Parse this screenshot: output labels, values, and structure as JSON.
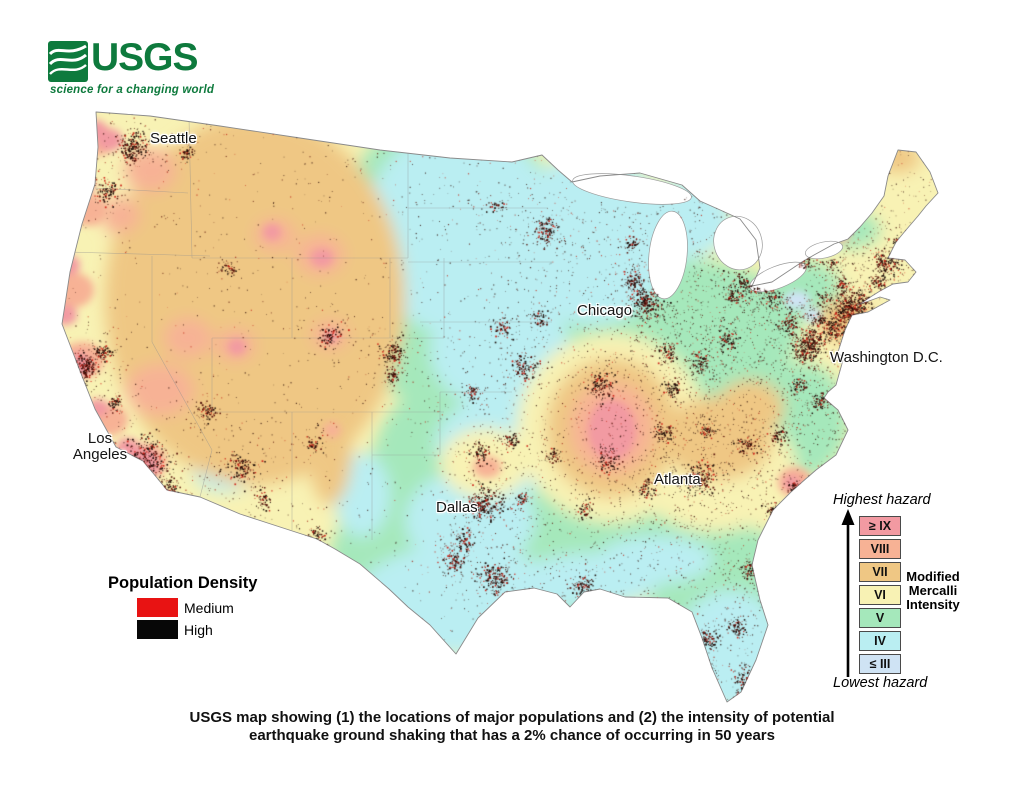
{
  "logo": {
    "org": "USGS",
    "tagline": "science for a changing world",
    "color": "#0e7a3d"
  },
  "map": {
    "city_labels": [
      {
        "name": "Seattle"
      },
      {
        "name": "Chicago"
      },
      {
        "name": "Washington D.C."
      },
      {
        "name": "Los\nAngeles"
      },
      {
        "name": "Atlanta"
      },
      {
        "name": "Dallas"
      }
    ]
  },
  "population_legend": {
    "title": "Population Density",
    "items": [
      {
        "label": "Medium",
        "color": "#e81313"
      },
      {
        "label": "High",
        "color": "#070707"
      }
    ]
  },
  "hazard_legend": {
    "top_label": "Highest hazard",
    "bottom_label": "Lowest hazard",
    "scale_label": "Modified\nMercalli\nIntensity",
    "levels": [
      {
        "label": "≥ IX",
        "color": "#f29aa2"
      },
      {
        "label": "VIII",
        "color": "#f7b295"
      },
      {
        "label": "VII",
        "color": "#efc784"
      },
      {
        "label": "VI",
        "color": "#f8f2b4"
      },
      {
        "label": "V",
        "color": "#a5e8bb"
      },
      {
        "label": "IV",
        "color": "#baeef2"
      },
      {
        "label": "≤ III",
        "color": "#cfe3f4"
      }
    ]
  },
  "caption": "USGS map showing (1) the locations of major populations and (2) the intensity of potential\nearthquake ground shaking that has a 2% chance of occurring in 50 years"
}
